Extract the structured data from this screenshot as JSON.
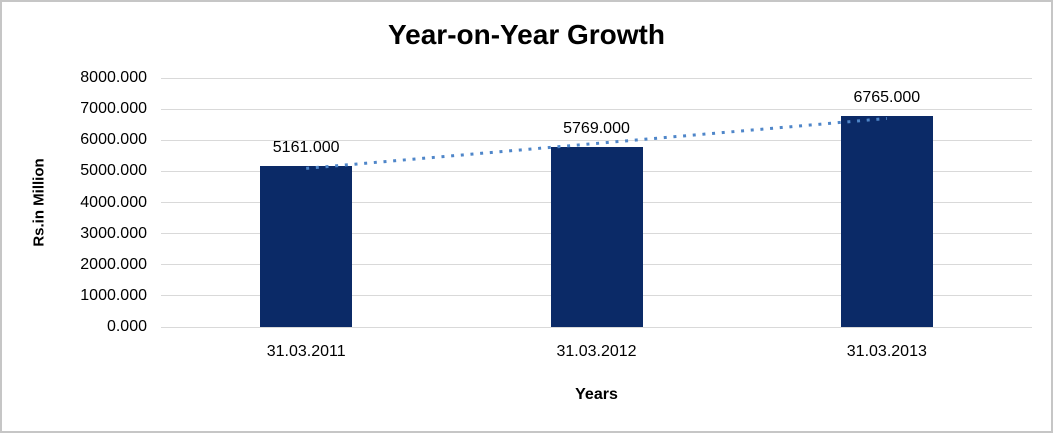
{
  "window": {
    "background": "#ffffff",
    "frame_border_color": "#c6c6c6"
  },
  "chart_data": {
    "type": "bar",
    "title": "Year-on-Year Growth",
    "ylabel": "Rs.in Million",
    "xlabel": "Years",
    "categories": [
      "31.03.2011",
      "31.03.2012",
      "31.03.2013"
    ],
    "values": [
      5161,
      5769,
      6765
    ],
    "value_labels": [
      "5161.000",
      "5769.000",
      "6765.000"
    ],
    "ylim": [
      0,
      8000
    ],
    "yticks": [
      0,
      1000,
      2000,
      3000,
      4000,
      5000,
      6000,
      7000,
      8000
    ],
    "ytick_labels": [
      "0.000",
      "1000.000",
      "2000.000",
      "3000.000",
      "4000.000",
      "5000.000",
      "6000.000",
      "7000.000",
      "8000.000"
    ],
    "grid": true,
    "legend": false,
    "trendline": {
      "type": "linear",
      "style": "dotted",
      "color": "#4f86c9"
    },
    "colors": {
      "bar": "#0b2a67",
      "gridline": "#d9d9d9",
      "text": "#000000"
    }
  }
}
